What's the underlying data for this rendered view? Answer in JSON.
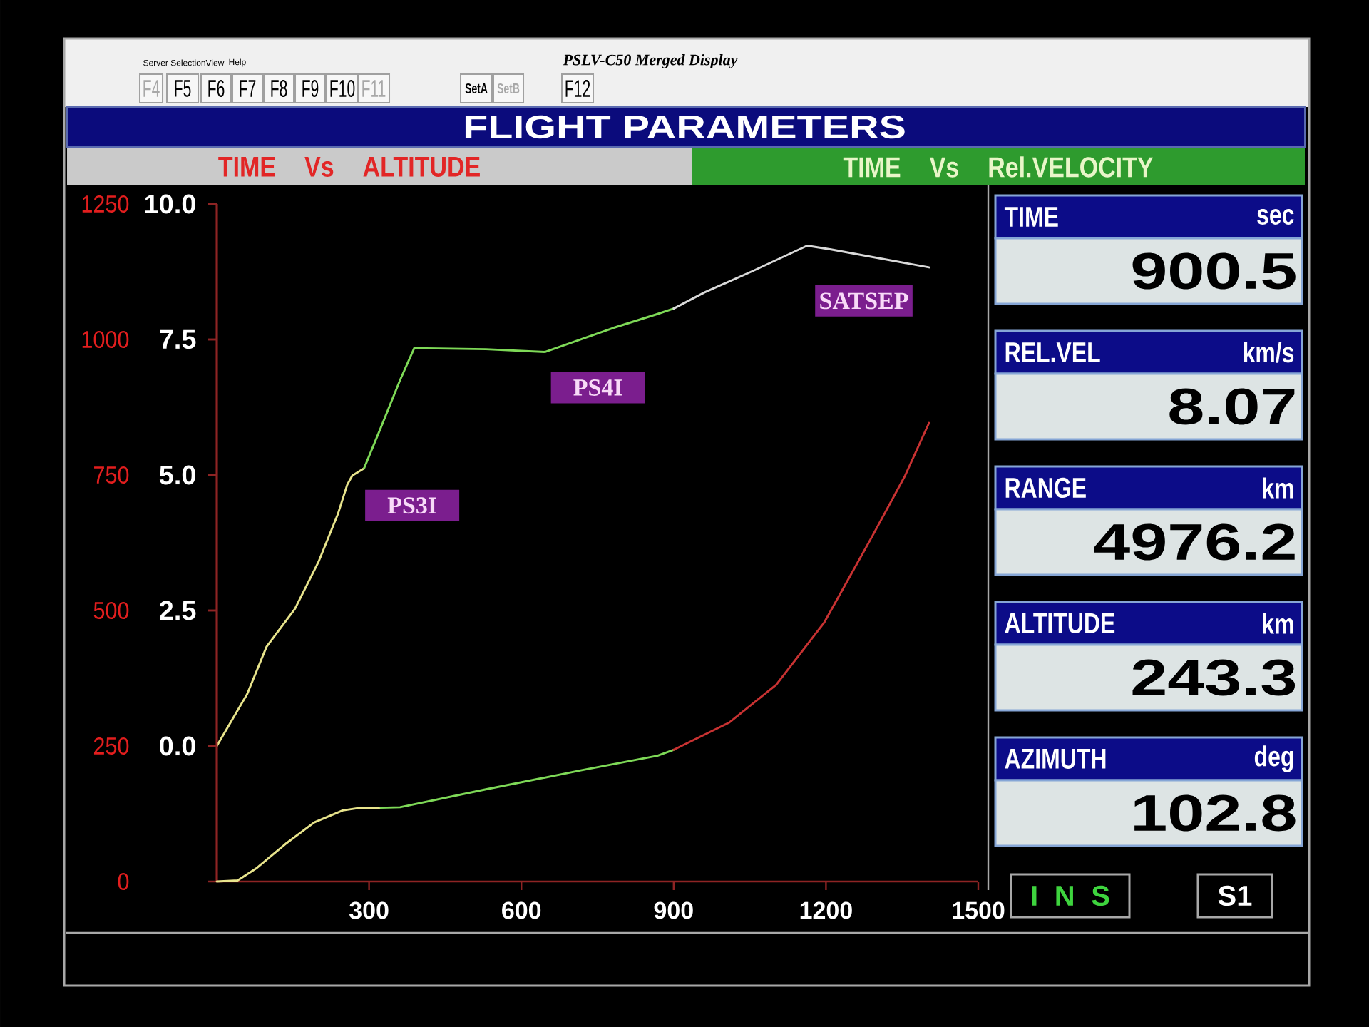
{
  "chart_data": [
    {
      "type": "other",
      "title": "PSLV-C50 Merged Display",
      "annotations": [
        "Server Selection",
        "View",
        "Help",
        "F4",
        "F5",
        "F6",
        "F7",
        "F8",
        "F9",
        "F10",
        "F11",
        "SetA",
        "SetB",
        "F12"
      ]
    },
    {
      "type": "line",
      "title": "FLIGHT PARAMETERS",
      "annotations": [
        "TIME Vs ALTITUDE",
        "TIME Vs Rel.VELOCITY",
        {
          "text": "PS3I",
          "x": 267,
          "y": 4.99
        },
        {
          "text": "PS4I",
          "x": 647,
          "y": 7.27
        },
        {
          "text": "SATSEP",
          "x": 1210,
          "y": 9.16
        }
      ],
      "xlim": [
        0,
        1500
      ],
      "xticks": [
        300,
        600,
        900,
        1200,
        1500
      ],
      "ylim": [
        -2.5,
        10
      ],
      "yticks": [
        {
          "value": 0,
          "label": "0.0"
        },
        2.5,
        {
          "value": 5,
          "label": "5.0"
        },
        7.5,
        {
          "value": 10,
          "label": "10.0"
        }
      ],
      "y2lim": [
        0,
        1250
      ],
      "y2ticks": [
        0,
        250,
        500,
        750,
        1000,
        1250
      ],
      "series": [
        {
          "color": "#e8e48c",
          "x": [
            0,
            60,
            98,
            154,
            201,
            239,
            257,
            267,
            290
          ],
          "values": [
            0,
            0.96,
            1.83,
            2.53,
            3.41,
            4.29,
            4.82,
            4.99,
            5.12
          ]
        },
        {
          "color": "#7ed957",
          "x": [
            290,
            323,
            361,
            389,
            530,
            647,
            780,
            868,
            900
          ],
          "values": [
            5.12,
            5.87,
            6.75,
            7.34,
            7.32,
            7.27,
            7.71,
            7.97,
            8.07
          ]
        },
        {
          "color": "#d9d9d9",
          "x": [
            900,
            961,
            1055,
            1163,
            1210,
            1403
          ],
          "values": [
            8.07,
            8.37,
            8.76,
            9.23,
            9.16,
            8.83
          ]
        },
        {
          "color": "#e8e48c",
          "axis": "y2",
          "x": [
            0,
            41,
            79,
            135,
            192,
            248,
            276,
            323
          ],
          "values": [
            0,
            2,
            25,
            69,
            109,
            131,
            135,
            136
          ]
        },
        {
          "color": "#7ed957",
          "axis": "y2",
          "x": [
            323,
            361,
            530,
            717,
            868,
            900
          ],
          "values": [
            136,
            137,
            170,
            205,
            232,
            243
          ]
        },
        {
          "color": "#c83232",
          "axis": "y2",
          "x": [
            900,
            1009,
            1102,
            1196,
            1290,
            1356,
            1403
          ],
          "values": [
            243,
            293,
            363,
            477,
            635,
            749,
            846
          ]
        }
      ]
    },
    {
      "type": "other",
      "annotations": [
        "TIME",
        "sec",
        "900.5",
        "REL.VEL",
        "km/s",
        "8.07",
        "RANGE",
        "km",
        "4976.2",
        "ALTITUDE",
        "km",
        "243.3",
        "AZIMUTH",
        "deg",
        "102.8",
        "I N S",
        "S1"
      ]
    }
  ]
}
